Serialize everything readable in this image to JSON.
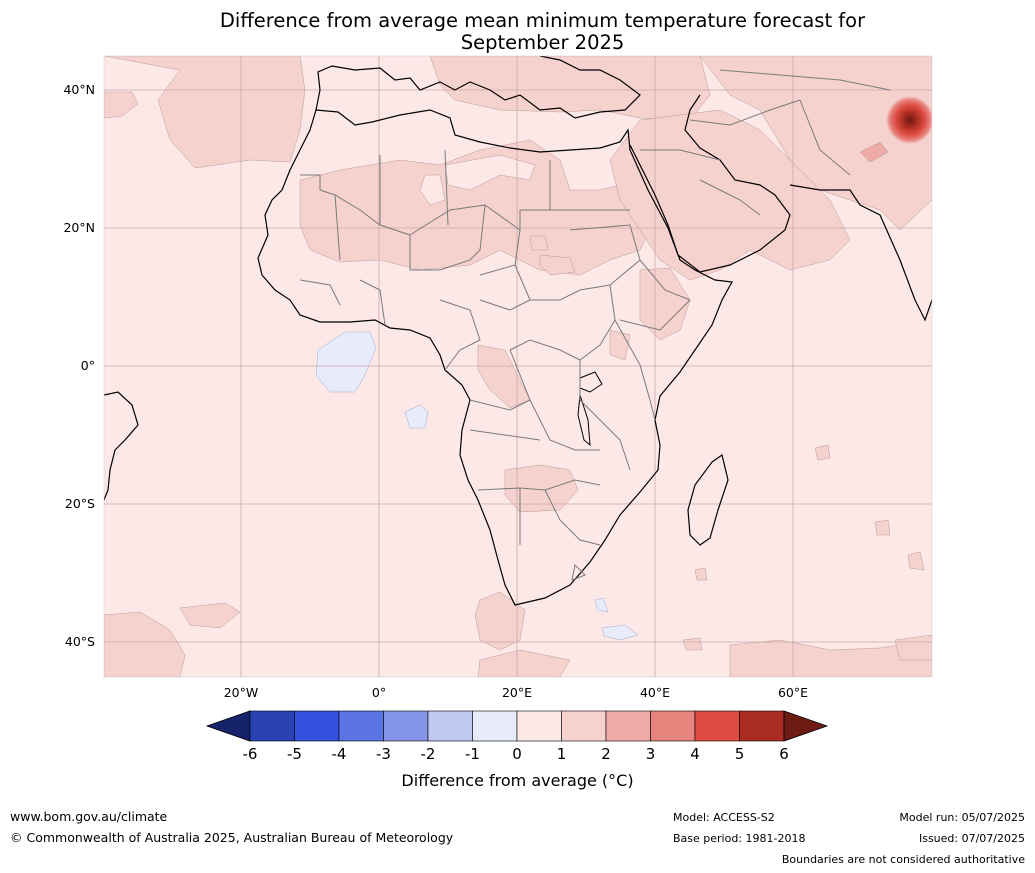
{
  "title": {
    "line1": "Difference from average mean minimum temperature forecast for",
    "line2": "September 2025"
  },
  "map": {
    "region": "Africa",
    "background_color": "#fce9e7",
    "lat_ticks": [
      "40°N",
      "20°N",
      "0°",
      "20°S",
      "40°S"
    ],
    "lon_ticks": [
      "20°W",
      "0°",
      "20°E",
      "40°E",
      "60°E"
    ]
  },
  "colorbar": {
    "ticks": [
      "-6",
      "-5",
      "-4",
      "-3",
      "-2",
      "-1",
      "0",
      "1",
      "2",
      "3",
      "4",
      "5",
      "6"
    ],
    "colors": [
      "#16236b",
      "#2941b3",
      "#3350e0",
      "#5b74e3",
      "#8596e8",
      "#c0c8f2",
      "#e8ebfa",
      "#fce9e7",
      "#f6d2cf",
      "#edaaa6",
      "#e8847e",
      "#dc4a40",
      "#aa2b22",
      "#6e1b14"
    ],
    "label": "Difference from average (°C)"
  },
  "footer": {
    "website": "www.bom.gov.au/climate",
    "copyright": "© Commonwealth of Australia 2025, Australian Bureau of Meteorology",
    "model": "Model: ACCESS-S2",
    "base_period": "Base period: 1981-2018",
    "model_run": "Model run: 05/07/2025",
    "issued": "Issued: 07/07/2025",
    "disclaimer": "Boundaries are not considered authoritative"
  }
}
